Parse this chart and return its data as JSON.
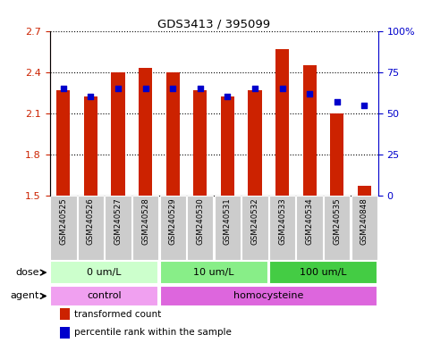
{
  "title": "GDS3413 / 395099",
  "samples": [
    "GSM240525",
    "GSM240526",
    "GSM240527",
    "GSM240528",
    "GSM240529",
    "GSM240530",
    "GSM240531",
    "GSM240532",
    "GSM240533",
    "GSM240534",
    "GSM240535",
    "GSM240848"
  ],
  "transformed_count": [
    2.27,
    2.22,
    2.4,
    2.43,
    2.4,
    2.27,
    2.22,
    2.27,
    2.57,
    2.45,
    2.1,
    1.57
  ],
  "percentile_rank": [
    65,
    60,
    65,
    65,
    65,
    65,
    60,
    65,
    65,
    62,
    57,
    55
  ],
  "ylim_left": [
    1.5,
    2.7
  ],
  "ylim_right": [
    0,
    100
  ],
  "yticks_left": [
    1.5,
    1.8,
    2.1,
    2.4,
    2.7
  ],
  "yticks_right": [
    0,
    25,
    50,
    75,
    100
  ],
  "bar_color": "#cc2200",
  "dot_color": "#0000cc",
  "bar_bottom": 1.5,
  "dose_groups": [
    {
      "label": "0 um/L",
      "start": 0,
      "end": 3,
      "color": "#ccffcc"
    },
    {
      "label": "10 um/L",
      "start": 4,
      "end": 7,
      "color": "#88ee88"
    },
    {
      "label": "100 um/L",
      "start": 8,
      "end": 11,
      "color": "#44cc44"
    }
  ],
  "agent_groups": [
    {
      "label": "control",
      "start": 0,
      "end": 3,
      "color": "#f0a0f0"
    },
    {
      "label": "homocysteine",
      "start": 4,
      "end": 11,
      "color": "#dd66dd"
    }
  ],
  "left_axis_color": "#cc2200",
  "right_axis_color": "#0000cc",
  "legend_items": [
    {
      "color": "#cc2200",
      "label": "transformed count"
    },
    {
      "color": "#0000cc",
      "label": "percentile rank within the sample"
    }
  ]
}
